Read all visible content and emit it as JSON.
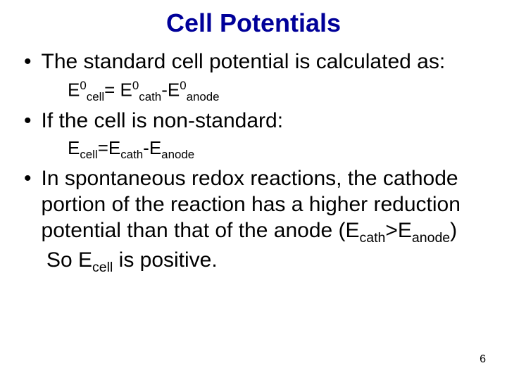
{
  "title": {
    "text": "Cell Potentials",
    "color": "#000099",
    "fontsize": 36
  },
  "body_fontsize": 30,
  "formula_fontsize": 26,
  "bullets": {
    "b1": "The standard cell potential is calculated as:",
    "b2": "If the cell is non-standard:",
    "b3": "In spontaneous redox reactions, the cathode portion of the reaction has a higher reduction potential than that of the anode (E",
    "b3_sub1": "cath",
    "b3_mid": ">E",
    "b3_sub2": "anode",
    "b3_end": ")"
  },
  "formula1": {
    "E": "E",
    "sup0_1": "0",
    "sub_cell": "cell",
    "eq": "= E",
    "sup0_2": "0",
    "sub_cath": "cath",
    "dash": "-E",
    "sup0_3": "0",
    "sub_anode": "anode"
  },
  "formula2": {
    "E": "E",
    "sub_cell": "cell",
    "eq": "=E",
    "sub_cath": "cath",
    "dash": "-E",
    "sub_anode": "anode"
  },
  "followup": {
    "pre": "So E",
    "sub_cell": "cell",
    "post": " is positive."
  },
  "page_number": "6",
  "colors": {
    "background": "#ffffff",
    "text": "#000000"
  }
}
